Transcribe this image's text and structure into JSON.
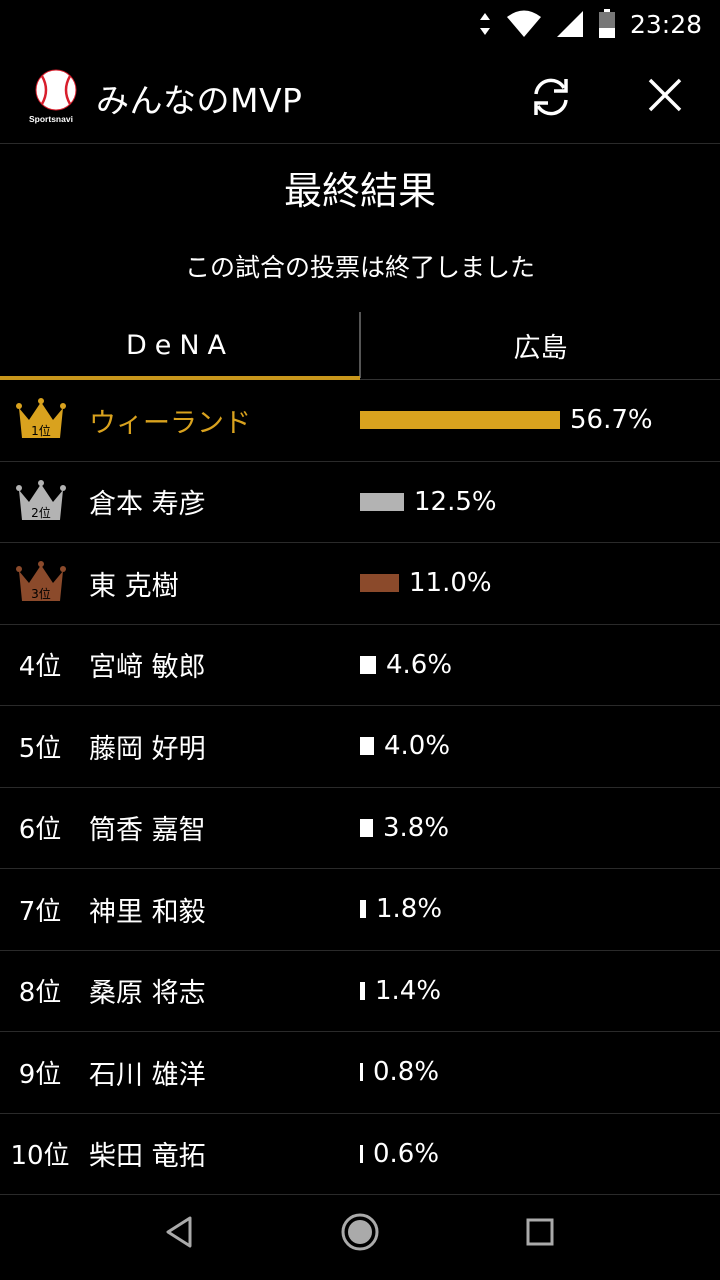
{
  "status": {
    "time": "23:28"
  },
  "header": {
    "title": "みんなのMVP",
    "logo_text": "Sportsnavi"
  },
  "result": {
    "title": "最終結果",
    "subtitle": "この試合の投票は終了しました"
  },
  "tabs": [
    {
      "label": "DeNA",
      "selected": true
    },
    {
      "label": "広島",
      "selected": false
    }
  ],
  "accent_color": "#c9971c",
  "ranking": [
    {
      "rank": "1位",
      "name": "ウィーランド",
      "percent": "56.7%",
      "value": 56.7,
      "color": "#d9a21e"
    },
    {
      "rank": "2位",
      "name": "倉本 寿彦",
      "percent": "12.5%",
      "value": 12.5,
      "color": "#b3b3b3"
    },
    {
      "rank": "3位",
      "name": "東 克樹",
      "percent": "11.0%",
      "value": 11.0,
      "color": "#8b4a2b"
    },
    {
      "rank": "4位",
      "name": "宮﨑 敏郎",
      "percent": "4.6%",
      "value": 4.6,
      "color": "#ffffff"
    },
    {
      "rank": "5位",
      "name": "藤岡 好明",
      "percent": "4.0%",
      "value": 4.0,
      "color": "#ffffff"
    },
    {
      "rank": "6位",
      "name": "筒香 嘉智",
      "percent": "3.8%",
      "value": 3.8,
      "color": "#ffffff"
    },
    {
      "rank": "7位",
      "name": "神里 和毅",
      "percent": "1.8%",
      "value": 1.8,
      "color": "#ffffff"
    },
    {
      "rank": "8位",
      "name": "桑原 将志",
      "percent": "1.4%",
      "value": 1.4,
      "color": "#ffffff"
    },
    {
      "rank": "9位",
      "name": "石川 雄洋",
      "percent": "0.8%",
      "value": 0.8,
      "color": "#ffffff"
    },
    {
      "rank": "10位",
      "name": "柴田 竜拓",
      "percent": "0.6%",
      "value": 0.6,
      "color": "#ffffff"
    }
  ]
}
